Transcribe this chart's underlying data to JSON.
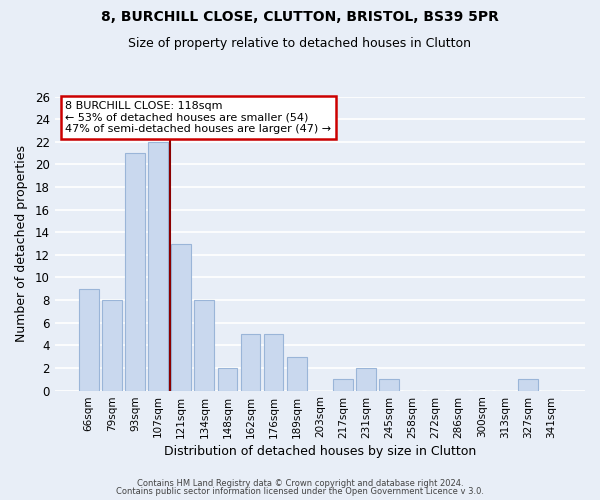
{
  "title1": "8, BURCHILL CLOSE, CLUTTON, BRISTOL, BS39 5PR",
  "title2": "Size of property relative to detached houses in Clutton",
  "xlabel": "Distribution of detached houses by size in Clutton",
  "ylabel": "Number of detached properties",
  "bar_labels": [
    "66sqm",
    "79sqm",
    "93sqm",
    "107sqm",
    "121sqm",
    "134sqm",
    "148sqm",
    "162sqm",
    "176sqm",
    "189sqm",
    "203sqm",
    "217sqm",
    "231sqm",
    "245sqm",
    "258sqm",
    "272sqm",
    "286sqm",
    "300sqm",
    "313sqm",
    "327sqm",
    "341sqm"
  ],
  "bar_values": [
    9,
    8,
    21,
    22,
    13,
    8,
    2,
    5,
    5,
    3,
    0,
    1,
    2,
    1,
    0,
    0,
    0,
    0,
    0,
    1,
    0
  ],
  "bar_color": "#c9d8ee",
  "bar_edge_color": "#9ab5d8",
  "vline_color": "#8b0000",
  "ylim": [
    0,
    26
  ],
  "yticks": [
    0,
    2,
    4,
    6,
    8,
    10,
    12,
    14,
    16,
    18,
    20,
    22,
    24,
    26
  ],
  "annotation_title": "8 BURCHILL CLOSE: 118sqm",
  "annotation_line1": "← 53% of detached houses are smaller (54)",
  "annotation_line2": "47% of semi-detached houses are larger (47) →",
  "annotation_box_color": "#ffffff",
  "annotation_box_edgecolor": "#cc0000",
  "footer1": "Contains HM Land Registry data © Crown copyright and database right 2024.",
  "footer2": "Contains public sector information licensed under the Open Government Licence v 3.0.",
  "background_color": "#e8eef7",
  "grid_color": "#ffffff",
  "title1_fontsize": 10,
  "title2_fontsize": 9
}
